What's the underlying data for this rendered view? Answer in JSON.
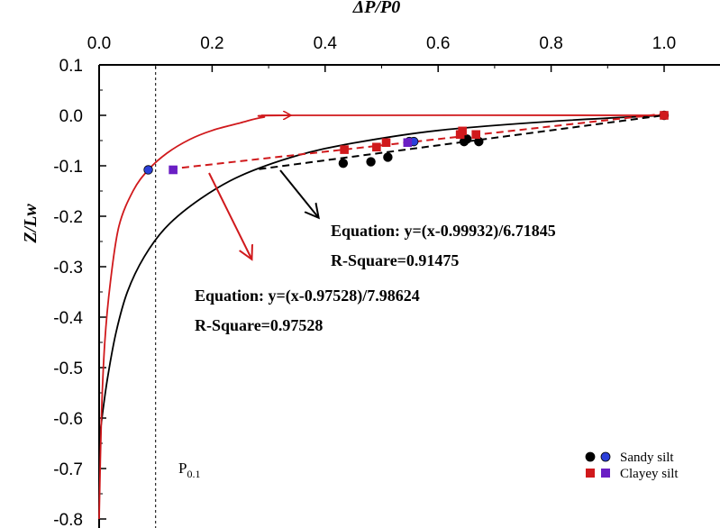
{
  "chart_data": {
    "type": "scatter",
    "xlabel": "ΔP/P0",
    "ylabel": "Z/Lw",
    "xlim": [
      0.0,
      1.1
    ],
    "ylim": [
      -0.8,
      0.1
    ],
    "xticks": [
      0.0,
      0.2,
      0.4,
      0.6,
      0.8,
      1.0
    ],
    "xtick_labels": [
      "0.0",
      "0.2",
      "0.4",
      "0.6",
      "0.8",
      "1.0"
    ],
    "yticks": [
      0.1,
      0.0,
      -0.1,
      -0.2,
      -0.3,
      -0.4,
      -0.5,
      -0.6,
      -0.7,
      -0.8
    ],
    "ytick_labels": [
      "0.1",
      "0.0",
      "-0.1",
      "-0.2",
      "-0.3",
      "-0.4",
      "-0.5",
      "-0.6",
      "-0.7",
      "-0.8"
    ],
    "reference_line": {
      "x": 0.1,
      "label": "P",
      "label_sub": "0.1"
    },
    "series": [
      {
        "name": "Sandy silt (black)",
        "marker": "circle",
        "color": "#000000",
        "points": [
          {
            "x": 0.432,
            "y": -0.095
          },
          {
            "x": 0.481,
            "y": -0.092
          },
          {
            "x": 0.511,
            "y": -0.083
          },
          {
            "x": 0.646,
            "y": -0.052
          },
          {
            "x": 0.651,
            "y": -0.047
          },
          {
            "x": 0.672,
            "y": -0.052
          }
        ]
      },
      {
        "name": "Sandy silt (blue)",
        "marker": "circle",
        "color": "#2b3fd9",
        "points": [
          {
            "x": 0.087,
            "y": -0.108
          },
          {
            "x": 0.549,
            "y": -0.052
          },
          {
            "x": 0.557,
            "y": -0.052
          },
          {
            "x": 1.0,
            "y": 0.0
          }
        ]
      },
      {
        "name": "Clayey silt (red)",
        "marker": "square",
        "color": "#d0191c",
        "points": [
          {
            "x": 0.434,
            "y": -0.068
          },
          {
            "x": 0.491,
            "y": -0.063
          },
          {
            "x": 0.508,
            "y": -0.054
          },
          {
            "x": 0.639,
            "y": -0.038
          },
          {
            "x": 0.643,
            "y": -0.031
          },
          {
            "x": 0.667,
            "y": -0.038
          },
          {
            "x": 1.0,
            "y": 0.0
          }
        ]
      },
      {
        "name": "Clayey silt (purple)",
        "marker": "square",
        "color": "#6a1fc4",
        "points": [
          {
            "x": 0.131,
            "y": -0.108
          },
          {
            "x": 0.546,
            "y": -0.054
          }
        ]
      }
    ],
    "fits": [
      {
        "name": "black-fit",
        "color": "#000000",
        "dash": true,
        "slope": 6.71845,
        "intercept": 0.99932,
        "x_range": [
          0.283,
          1.0
        ],
        "equation": "Equation: y=(x-0.99932)/6.71845",
        "r_square": "R-Square=0.91475"
      },
      {
        "name": "red-fit",
        "color": "#d0191c",
        "dash": true,
        "slope": 7.98624,
        "intercept": 0.97528,
        "x_range": [
          0.126,
          1.0
        ],
        "equation": "Equation: y=(x-0.97528)/7.98624",
        "r_square": "R-Square=0.97528"
      }
    ],
    "curves": [
      {
        "name": "black-curve",
        "color": "#000000",
        "points": [
          [
            1.0,
            0.0
          ],
          [
            0.8,
            -0.012
          ],
          [
            0.6,
            -0.03
          ],
          [
            0.45,
            -0.055
          ],
          [
            0.35,
            -0.08
          ],
          [
            0.25,
            -0.12
          ],
          [
            0.18,
            -0.165
          ],
          [
            0.12,
            -0.22
          ],
          [
            0.08,
            -0.28
          ],
          [
            0.05,
            -0.35
          ],
          [
            0.03,
            -0.43
          ],
          [
            0.015,
            -0.52
          ],
          [
            0.005,
            -0.6
          ],
          [
            0.0,
            -0.65
          ]
        ]
      },
      {
        "name": "red-curve",
        "color": "#d0191c",
        "points": [
          [
            0.0,
            -0.8
          ],
          [
            0.004,
            -0.6
          ],
          [
            0.01,
            -0.45
          ],
          [
            0.02,
            -0.33
          ],
          [
            0.035,
            -0.22
          ],
          [
            0.06,
            -0.15
          ],
          [
            0.087,
            -0.108
          ],
          [
            0.12,
            -0.075
          ],
          [
            0.16,
            -0.048
          ],
          [
            0.2,
            -0.03
          ],
          [
            0.25,
            -0.015
          ],
          [
            0.29,
            -0.004
          ],
          [
            0.35,
            0.0
          ],
          [
            1.0,
            0.0
          ]
        ]
      }
    ],
    "legend": [
      {
        "label": "Sandy silt",
        "marker": "circle",
        "colors": [
          "#000000",
          "#2b3fd9"
        ]
      },
      {
        "label": "Clayey silt",
        "marker": "square",
        "colors": [
          "#d0191c",
          "#6a1fc4"
        ]
      }
    ]
  }
}
